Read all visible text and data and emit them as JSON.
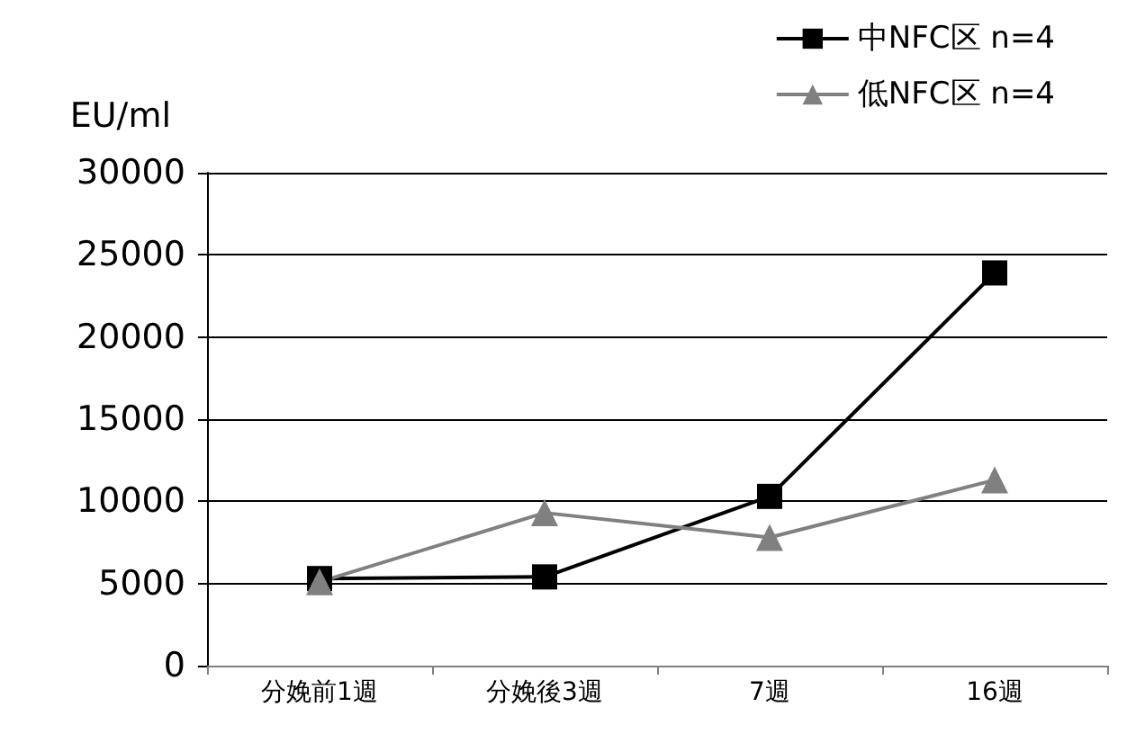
{
  "chart_data": {
    "type": "line",
    "ylabel": "EU/ml",
    "categories": [
      "分娩前1週",
      "分娩後3週",
      "7週",
      "16週"
    ],
    "series": [
      {
        "name": "中NFC区 n=4",
        "color": "#000000",
        "marker": "square",
        "values": [
          5300,
          5400,
          10300,
          23900
        ]
      },
      {
        "name": "低NFC区 n=4",
        "color": "#808080",
        "marker": "triangle",
        "values": [
          5100,
          9300,
          7800,
          11300
        ]
      }
    ],
    "ylim": [
      0,
      30000
    ],
    "yticks": [
      0,
      5000,
      10000,
      15000,
      20000,
      25000,
      30000
    ],
    "grid": "y",
    "legend": "top right",
    "line_style": "solid"
  }
}
